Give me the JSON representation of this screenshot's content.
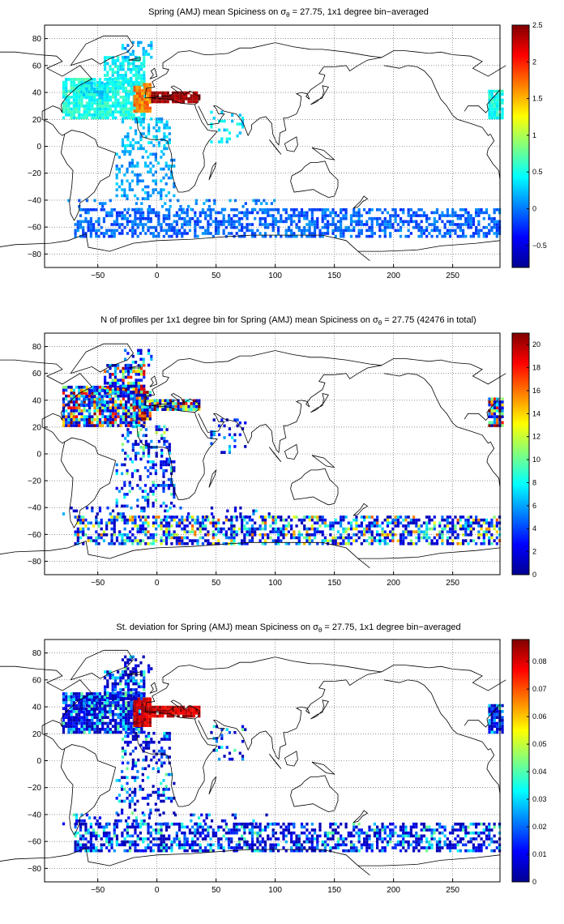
{
  "chart_data": [
    {
      "type": "heatmap",
      "title": "Spring (AMJ) mean Spiciness on σθ = 27.75, 1x1 degree bin−averaged",
      "title_parts": {
        "pre": "Spring (AMJ) mean Spiciness on σ",
        "sub": "θ",
        "post": " = 27.75, 1x1 degree bin−averaged"
      },
      "xlim": [
        -95,
        290
      ],
      "ylim": [
        -90,
        90
      ],
      "xticks": [
        -50,
        0,
        50,
        100,
        150,
        200,
        250
      ],
      "yticks": [
        80,
        60,
        40,
        20,
        0,
        -20,
        -40,
        -60,
        -80
      ],
      "grid": true,
      "colorbar": {
        "min": -0.8,
        "max": 2.5,
        "ticks": [
          2.5,
          2,
          1.5,
          1,
          0.5,
          0,
          -0.5
        ]
      }
    },
    {
      "type": "heatmap",
      "title": "N of profiles per 1x1 degree bin for Spring (AMJ) mean Spiciness on σθ = 27.75 (42476 in total)",
      "title_parts": {
        "pre": "N of profiles per 1x1 degree bin for Spring (AMJ) mean Spiciness on σ",
        "sub": "θ",
        "post": " = 27.75 (42476 in total)"
      },
      "xlim": [
        -95,
        290
      ],
      "ylim": [
        -90,
        90
      ],
      "xticks": [
        -50,
        0,
        50,
        100,
        150,
        200,
        250
      ],
      "yticks": [
        80,
        60,
        40,
        20,
        0,
        -20,
        -40,
        -60,
        -80
      ],
      "grid": true,
      "colorbar": {
        "min": 0,
        "max": 21,
        "ticks": [
          20,
          18,
          16,
          14,
          12,
          10,
          8,
          6,
          4,
          2,
          0
        ]
      }
    },
    {
      "type": "heatmap",
      "title": "St. deviation for Spring (AMJ) mean Spiciness on σθ = 27.75, 1x1 degree bin−averaged",
      "title_parts": {
        "pre": "St. deviation for Spring (AMJ) mean Spiciness on σ",
        "sub": "θ",
        "post": " = 27.75, 1x1 degree bin−averaged"
      },
      "xlim": [
        -95,
        290
      ],
      "ylim": [
        -90,
        90
      ],
      "xticks": [
        -50,
        0,
        50,
        100,
        150,
        200,
        250
      ],
      "yticks": [
        80,
        60,
        40,
        20,
        0,
        -20,
        -40,
        -60,
        -80
      ],
      "grid": true,
      "colorbar": {
        "min": 0,
        "max": 0.088,
        "ticks": [
          0.08,
          0.07,
          0.06,
          0.05,
          0.04,
          0.03,
          0.02,
          0.01,
          0
        ]
      }
    }
  ]
}
